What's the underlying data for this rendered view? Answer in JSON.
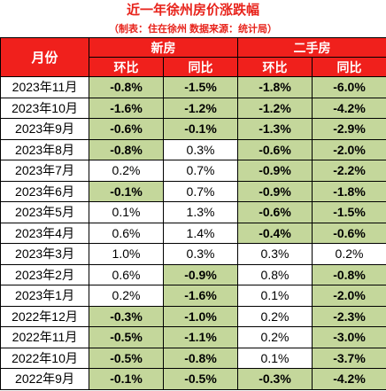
{
  "title": "近一年徐州房价涨跌幅",
  "subtitle": "（制表：住在徐州   数据来源：统计局）",
  "headers": {
    "month": "月份",
    "new_house": "新房",
    "second_hand": "二手房",
    "mom": "环比",
    "yoy": "同比"
  },
  "rows": [
    {
      "month": "2023年11月",
      "new_mom": "-0.8%",
      "new_yoy": "-1.5%",
      "sh_mom": "-1.8%",
      "sh_yoy": "-6.0%"
    },
    {
      "month": "2023年10月",
      "new_mom": "-1.6%",
      "new_yoy": "-1.2%",
      "sh_mom": "-1.2%",
      "sh_yoy": "-4.2%"
    },
    {
      "month": "2023年9月",
      "new_mom": "-0.6%",
      "new_yoy": "-0.1%",
      "sh_mom": "-1.3%",
      "sh_yoy": "-2.9%"
    },
    {
      "month": "2023年8月",
      "new_mom": "-0.8%",
      "new_yoy": "0.3%",
      "sh_mom": "-0.6%",
      "sh_yoy": "-2.0%"
    },
    {
      "month": "2023年7月",
      "new_mom": "0.2%",
      "new_yoy": "0.7%",
      "sh_mom": "-0.9%",
      "sh_yoy": "-2.2%"
    },
    {
      "month": "2023年6月",
      "new_mom": "-0.1%",
      "new_yoy": "0.7%",
      "sh_mom": "-0.9%",
      "sh_yoy": "-1.8%"
    },
    {
      "month": "2023年5月",
      "new_mom": "0.1%",
      "new_yoy": "1.3%",
      "sh_mom": "-0.6%",
      "sh_yoy": "-1.5%"
    },
    {
      "month": "2023年4月",
      "new_mom": "0.6%",
      "new_yoy": "1.4%",
      "sh_mom": "-0.4%",
      "sh_yoy": "-0.6%"
    },
    {
      "month": "2023年3月",
      "new_mom": "1.0%",
      "new_yoy": "0.3%",
      "sh_mom": "0.3%",
      "sh_yoy": "0.2%"
    },
    {
      "month": "2023年2月",
      "new_mom": "0.6%",
      "new_yoy": "-0.9%",
      "sh_mom": "0.8%",
      "sh_yoy": "-0.8%"
    },
    {
      "month": "2023年1月",
      "new_mom": "0.2%",
      "new_yoy": "-1.6%",
      "sh_mom": "0.1%",
      "sh_yoy": "-2.0%"
    },
    {
      "month": "2022年12月",
      "new_mom": "-0.3%",
      "new_yoy": "-1.0%",
      "sh_mom": "0.2%",
      "sh_yoy": "-2.3%"
    },
    {
      "month": "2022年11月",
      "new_mom": "-0.5%",
      "new_yoy": "-1.1%",
      "sh_mom": "0.2%",
      "sh_yoy": "-3.0%"
    },
    {
      "month": "2022年10月",
      "new_mom": "-0.5%",
      "new_yoy": "-0.8%",
      "sh_mom": "0.1%",
      "sh_yoy": "-3.7%"
    },
    {
      "month": "2022年9月",
      "new_mom": "-0.1%",
      "new_yoy": "-0.5%",
      "sh_mom": "-0.3%",
      "sh_yoy": "-4.2%"
    }
  ],
  "colors": {
    "title_red": "#e8241c",
    "header_red": "#f0201c",
    "negative_fill": "#c4d79b"
  }
}
